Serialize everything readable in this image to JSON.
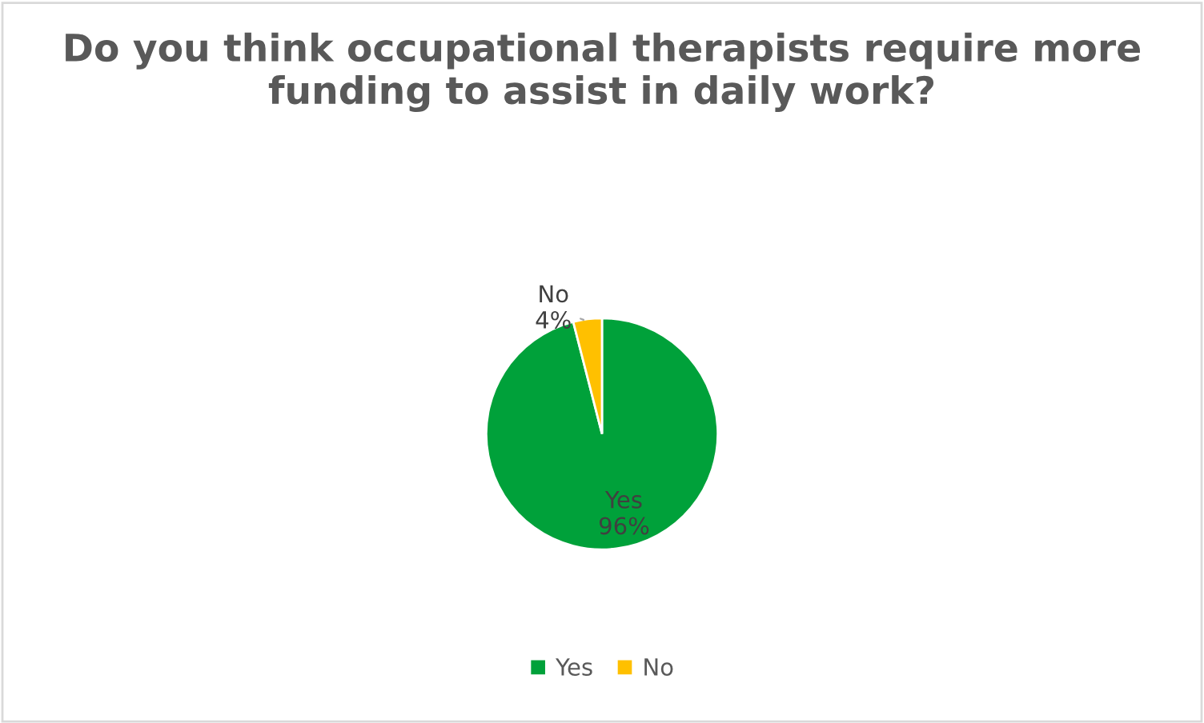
{
  "chart_data": {
    "type": "pie",
    "title": "Do you think occupational therapists require more funding to assist in daily work?",
    "categories": [
      "Yes",
      "No"
    ],
    "values": [
      96,
      4
    ],
    "colors": [
      "#00a13a",
      "#ffc000"
    ],
    "value_labels": [
      "96%",
      "4%"
    ],
    "legend": "bottom"
  }
}
